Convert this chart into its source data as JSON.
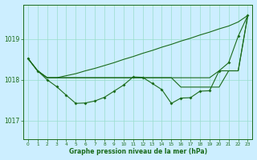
{
  "xlabel": "Graphe pression niveau de la mer (hPa)",
  "x_ticks": [
    0,
    1,
    2,
    3,
    4,
    5,
    6,
    7,
    8,
    9,
    10,
    11,
    12,
    13,
    14,
    15,
    16,
    17,
    18,
    19,
    20,
    21,
    22,
    23
  ],
  "ylim": [
    1016.55,
    1019.85
  ],
  "yticks": [
    1017,
    1018,
    1019
  ],
  "background_color": "#cceeff",
  "grid_color": "#99ddcc",
  "line_color": "#1a6b1a",
  "line_main": [
    1018.52,
    1018.22,
    1018.0,
    1017.83,
    1017.62,
    1017.42,
    1017.43,
    1017.48,
    1017.57,
    1017.72,
    1017.87,
    1018.07,
    1018.06,
    1017.91,
    1017.76,
    1017.42,
    1017.55,
    1017.56,
    1017.72,
    1017.73,
    1018.22,
    1018.42,
    1019.07,
    1019.58
  ],
  "line_top": [
    1018.52,
    1018.22,
    1018.05,
    1018.05,
    1018.1,
    1018.15,
    1018.22,
    1018.28,
    1018.35,
    1018.42,
    1018.5,
    1018.57,
    1018.65,
    1018.72,
    1018.8,
    1018.87,
    1018.95,
    1019.02,
    1019.1,
    1019.17,
    1019.25,
    1019.32,
    1019.42,
    1019.58
  ],
  "line_mid1": [
    1018.52,
    1018.22,
    1018.05,
    1018.05,
    1018.05,
    1018.05,
    1018.05,
    1018.05,
    1018.05,
    1018.05,
    1018.05,
    1018.05,
    1018.05,
    1018.05,
    1018.05,
    1018.05,
    1018.05,
    1018.05,
    1018.05,
    1018.05,
    1018.22,
    1018.22,
    1018.22,
    1019.58
  ],
  "line_mid2": [
    1018.52,
    1018.22,
    1018.05,
    1018.05,
    1018.05,
    1018.05,
    1018.05,
    1018.05,
    1018.05,
    1018.05,
    1018.05,
    1018.05,
    1018.05,
    1018.05,
    1018.05,
    1018.05,
    1017.82,
    1017.82,
    1017.82,
    1017.82,
    1017.82,
    1018.22,
    1018.22,
    1019.58
  ]
}
